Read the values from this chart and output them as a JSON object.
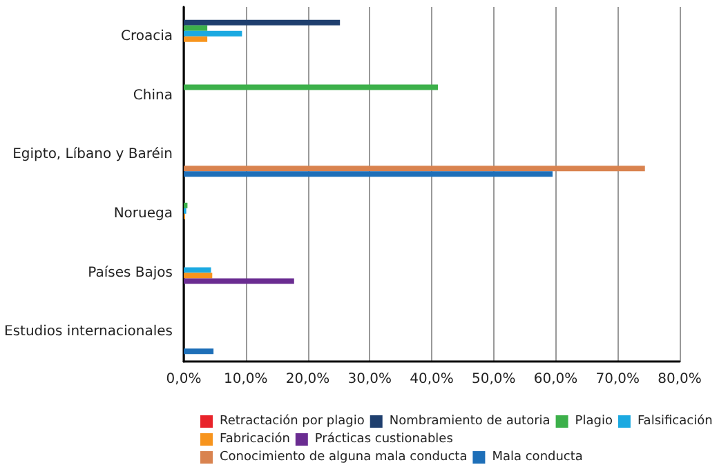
{
  "chart_data": {
    "type": "bar",
    "orientation": "horizontal",
    "categories": [
      "Croacia",
      "China",
      "Egipto, Líbano y Baréin",
      "Noruega",
      "Países Bajos",
      "Estudios internacionales"
    ],
    "series": [
      {
        "name": "Retractación por plagio",
        "color": "#e8232a",
        "values": [
          null,
          null,
          null,
          null,
          null,
          null
        ]
      },
      {
        "name": "Nombramiento de autoria",
        "color": "#1f3f6e",
        "values": [
          25.2,
          null,
          null,
          null,
          null,
          null
        ]
      },
      {
        "name": "Plagio",
        "color": "#3cb04a",
        "values": [
          3.8,
          41.0,
          null,
          0.6,
          null,
          null
        ]
      },
      {
        "name": "Falsificación",
        "color": "#1ba9e1",
        "values": [
          9.4,
          null,
          null,
          0.4,
          4.4,
          null
        ]
      },
      {
        "name": "Fabricación",
        "color": "#f7941d",
        "values": [
          3.8,
          null,
          null,
          0.2,
          4.6,
          null
        ]
      },
      {
        "name": "Prácticas custionables",
        "color": "#6a2c91",
        "values": [
          null,
          null,
          null,
          null,
          17.8,
          null
        ]
      },
      {
        "name": "Conocimiento de alguna mala conducta",
        "color": "#d9834f",
        "values": [
          null,
          null,
          74.4,
          null,
          null,
          null
        ]
      },
      {
        "name": "Mala conducta",
        "color": "#1e6fb8",
        "values": [
          null,
          null,
          59.5,
          null,
          null,
          4.8
        ]
      }
    ],
    "xlim": [
      0,
      80
    ],
    "xticks": [
      {
        "value": 0,
        "label": "0,0%"
      },
      {
        "value": 10,
        "label": "10,0%"
      },
      {
        "value": 20,
        "label": "20,0%"
      },
      {
        "value": 30,
        "label": "30,0%"
      },
      {
        "value": 40,
        "label": "40,0%"
      },
      {
        "value": 50,
        "label": "50,0%"
      },
      {
        "value": 60,
        "label": "60,0%"
      },
      {
        "value": 70,
        "label": "70,0%"
      },
      {
        "value": 80,
        "label": "80,0%"
      }
    ],
    "grid": "x",
    "legend": "bottom"
  }
}
